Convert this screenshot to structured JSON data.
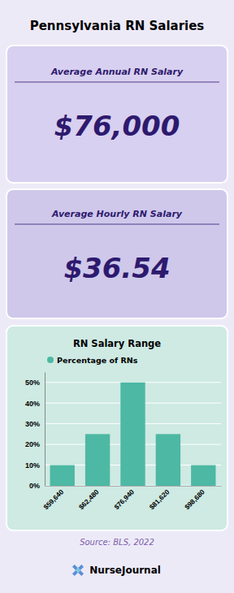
{
  "chart_data": {
    "type": "bar",
    "title": "RN Salary Range",
    "annotations": [
      "Pennsylvania RN Salaries",
      "Average Annual RN Salary",
      "$76,000",
      "Average Hourly RN Salary",
      "$36.54",
      "Source: BLS, 2022",
      "NurseJournal"
    ],
    "categories": [
      "$59,640",
      "$62,480",
      "$76,940",
      "$81,620",
      "$98,680"
    ],
    "series": [
      {
        "name": "Percentage of RNs",
        "color": "#4db8a4",
        "values": [
          10,
          25,
          50,
          25,
          10
        ]
      }
    ],
    "ylim": [
      0,
      55
    ],
    "yticks": [
      {
        "value": 0,
        "label": "0%"
      },
      {
        "value": 10,
        "label": "10%"
      },
      {
        "value": 20,
        "label": "20%"
      },
      {
        "value": 30,
        "label": "30%"
      },
      {
        "value": 40,
        "label": "40%"
      },
      {
        "value": 50,
        "label": "50%"
      }
    ],
    "grid": true,
    "legend": "top"
  }
}
